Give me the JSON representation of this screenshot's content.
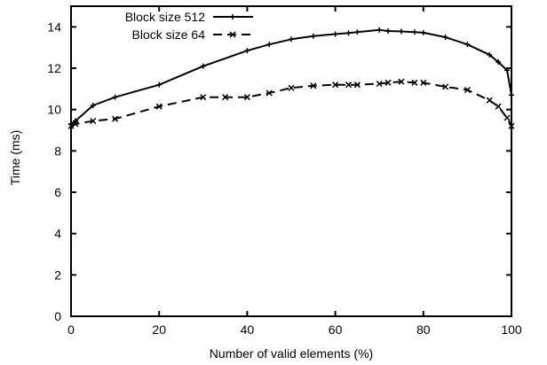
{
  "chart_data": {
    "type": "line",
    "xlabel": "Number of valid elements (%)",
    "ylabel": "Time (ms)",
    "xlim": [
      0,
      100
    ],
    "ylim": [
      0,
      15
    ],
    "xticks": [
      0,
      20,
      40,
      60,
      80,
      100
    ],
    "yticks": [
      0,
      2,
      4,
      6,
      8,
      10,
      12,
      14
    ],
    "legend_position": "top-left",
    "grid": false,
    "series": [
      {
        "name": "Block size 512",
        "style": "solid",
        "marker": "plus",
        "color": "#000000",
        "x": [
          0,
          1,
          5,
          10,
          20,
          30,
          40,
          45,
          50,
          55,
          60,
          63,
          65,
          70,
          72,
          75,
          78,
          80,
          85,
          90,
          95,
          97,
          99,
          100
        ],
        "y": [
          9.3,
          9.45,
          10.2,
          10.6,
          11.2,
          12.1,
          12.85,
          13.15,
          13.4,
          13.55,
          13.65,
          13.7,
          13.75,
          13.85,
          13.8,
          13.78,
          13.75,
          13.72,
          13.5,
          13.15,
          12.65,
          12.3,
          11.9,
          10.7
        ]
      },
      {
        "name": "Block size 64",
        "style": "dashed",
        "marker": "cross",
        "color": "#000000",
        "x": [
          0,
          1,
          5,
          10,
          20,
          30,
          35,
          40,
          45,
          50,
          55,
          60,
          63,
          65,
          70,
          72,
          75,
          78,
          80,
          85,
          90,
          95,
          97,
          99,
          100
        ],
        "y": [
          9.2,
          9.3,
          9.45,
          9.55,
          10.15,
          10.6,
          10.6,
          10.6,
          10.8,
          11.05,
          11.15,
          11.2,
          11.2,
          11.2,
          11.25,
          11.3,
          11.35,
          11.3,
          11.3,
          11.1,
          10.95,
          10.45,
          10.15,
          9.6,
          9.2
        ]
      }
    ]
  }
}
